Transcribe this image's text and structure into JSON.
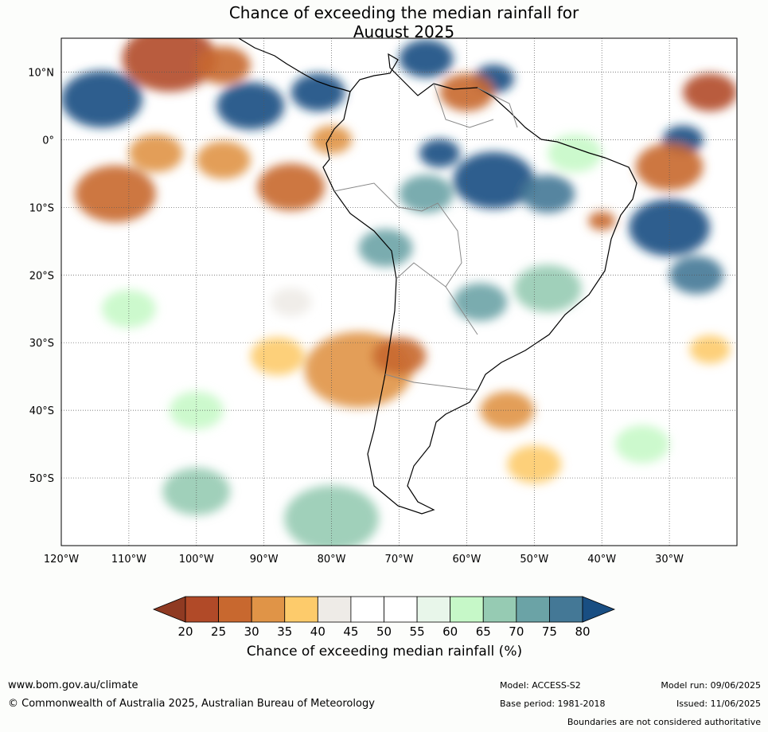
{
  "title": {
    "line1": "Chance of exceeding the median rainfall for",
    "line2": "August 2025"
  },
  "map": {
    "lon_ticks": [
      "120°W",
      "110°W",
      "100°W",
      "90°W",
      "80°W",
      "70°W",
      "60°W",
      "50°W",
      "40°W",
      "30°W"
    ],
    "lat_ticks": [
      "10°N",
      "0°",
      "10°S",
      "20°S",
      "30°S",
      "40°S",
      "50°S"
    ],
    "lon_values": [
      -120,
      -110,
      -100,
      -90,
      -80,
      -70,
      -60,
      -50,
      -40,
      -30
    ],
    "lat_values": [
      10,
      0,
      -10,
      -20,
      -30,
      -40,
      -50
    ],
    "extent": {
      "lon_min": -120,
      "lon_max": -20,
      "lat_min": -60,
      "lat_max": 15
    },
    "gridlines": true,
    "blobs": [
      {
        "lon": -104,
        "lat": 12,
        "r": 7,
        "value": 20
      },
      {
        "lon": -96,
        "lat": 11,
        "r": 4,
        "value": 25
      },
      {
        "lon": -114,
        "lat": 6,
        "r": 6,
        "value": 80
      },
      {
        "lon": -92,
        "lat": 5,
        "r": 5,
        "value": 80
      },
      {
        "lon": -82,
        "lat": 7,
        "r": 4,
        "value": 80
      },
      {
        "lon": -66,
        "lat": 12,
        "r": 4,
        "value": 80
      },
      {
        "lon": -56,
        "lat": 9,
        "r": 3,
        "value": 80
      },
      {
        "lon": -24,
        "lat": 7,
        "r": 4,
        "value": 20
      },
      {
        "lon": -28,
        "lat": 0,
        "r": 3,
        "value": 80
      },
      {
        "lon": -112,
        "lat": -8,
        "r": 6,
        "value": 25
      },
      {
        "lon": -106,
        "lat": -2,
        "r": 4,
        "value": 30
      },
      {
        "lon": -86,
        "lat": -7,
        "r": 5,
        "value": 25
      },
      {
        "lon": -96,
        "lat": -3,
        "r": 4,
        "value": 30
      },
      {
        "lon": -80,
        "lat": 0,
        "r": 3,
        "value": 30
      },
      {
        "lon": -60,
        "lat": 7,
        "r": 4,
        "value": 25
      },
      {
        "lon": -64,
        "lat": -2,
        "r": 3,
        "value": 80
      },
      {
        "lon": -56,
        "lat": -6,
        "r": 6,
        "value": 80
      },
      {
        "lon": -48,
        "lat": -8,
        "r": 4,
        "value": 75
      },
      {
        "lon": -66,
        "lat": -8,
        "r": 4,
        "value": 70
      },
      {
        "lon": -30,
        "lat": -13,
        "r": 6,
        "value": 80
      },
      {
        "lon": -40,
        "lat": -12,
        "r": 2,
        "value": 25
      },
      {
        "lon": -26,
        "lat": -20,
        "r": 4,
        "value": 75
      },
      {
        "lon": -30,
        "lat": -4,
        "r": 5,
        "value": 25
      },
      {
        "lon": -72,
        "lat": -16,
        "r": 4,
        "value": 70
      },
      {
        "lon": -58,
        "lat": -24,
        "r": 4,
        "value": 70
      },
      {
        "lon": -48,
        "lat": -22,
        "r": 5,
        "value": 65
      },
      {
        "lon": -76,
        "lat": -34,
        "r": 8,
        "value": 30
      },
      {
        "lon": -70,
        "lat": -32,
        "r": 4,
        "value": 25
      },
      {
        "lon": -88,
        "lat": -32,
        "r": 4,
        "value": 35
      },
      {
        "lon": -54,
        "lat": -40,
        "r": 4,
        "value": 30
      },
      {
        "lon": -50,
        "lat": -48,
        "r": 4,
        "value": 35
      },
      {
        "lon": -24,
        "lat": -31,
        "r": 3,
        "value": 35
      },
      {
        "lon": -80,
        "lat": -56,
        "r": 7,
        "value": 65
      },
      {
        "lon": -100,
        "lat": -52,
        "r": 5,
        "value": 65
      },
      {
        "lon": -34,
        "lat": -45,
        "r": 4,
        "value": 60
      },
      {
        "lon": -110,
        "lat": -25,
        "r": 4,
        "value": 60
      },
      {
        "lon": -86,
        "lat": -24,
        "r": 3,
        "value": 40
      },
      {
        "lon": -100,
        "lat": -40,
        "r": 4,
        "value": 60
      },
      {
        "lon": -44,
        "lat": -2,
        "r": 4,
        "value": 60
      }
    ]
  },
  "colorbar": {
    "ticks": [
      "20",
      "25",
      "30",
      "35",
      "40",
      "45",
      "50",
      "55",
      "60",
      "65",
      "70",
      "75",
      "80"
    ],
    "colors": [
      "#8f3a22",
      "#b14a28",
      "#c8682f",
      "#e09447",
      "#fdcb6b",
      "#eeebe7",
      "#ffffff",
      "#ffffff",
      "#e8f6ea",
      "#c6f8c8",
      "#96cbb3",
      "#6ba3a6",
      "#447896",
      "#194e82"
    ],
    "caption": "Chance of exceeding median rainfall (%)"
  },
  "footer": {
    "website": "www.bom.gov.au/climate",
    "copyright": "© Commonwealth of Australia 2025, Australian Bureau of Meteorology",
    "model": "Model: ACCESS-S2",
    "base_period": "Base period: 1981-2018",
    "model_run": "Model run: 09/06/2025",
    "issued": "Issued: 11/06/2025",
    "disclaimer": "Boundaries are not considered authoritative"
  }
}
